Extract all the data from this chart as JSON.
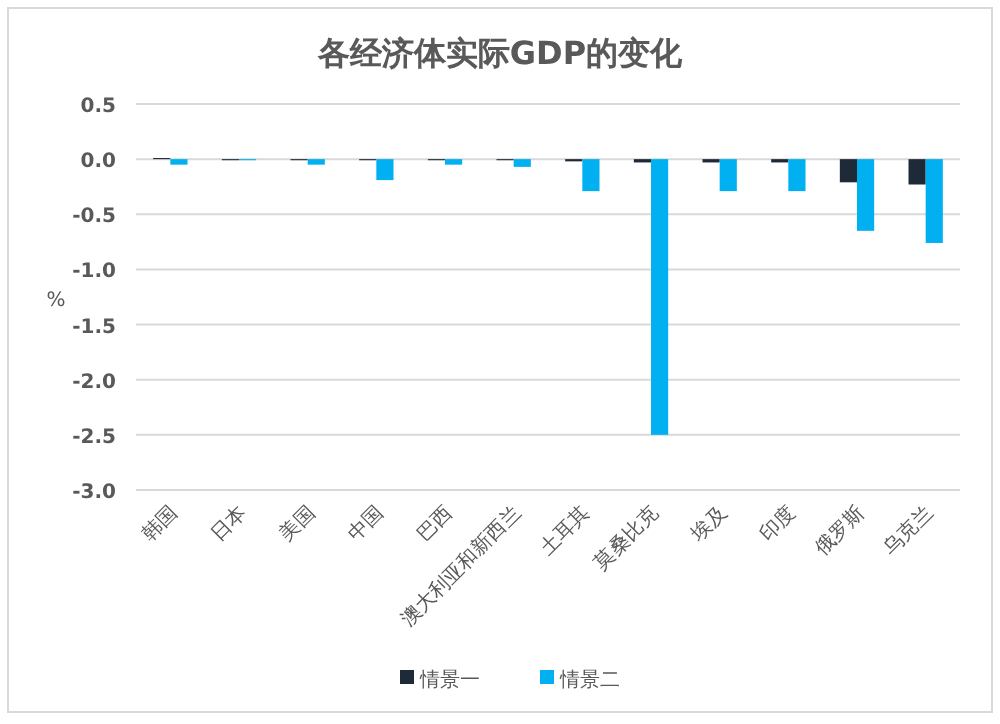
{
  "chart_data": {
    "type": "bar",
    "title": "各经济体实际GDP的变化",
    "ylabel": "%",
    "categories": [
      "韩国",
      "日本",
      "美国",
      "中国",
      "巴西",
      "澳大利亚和新西兰",
      "土耳其",
      "莫桑比克",
      "埃及",
      "印度",
      "俄罗斯",
      "乌克兰"
    ],
    "series": [
      {
        "name": "情景一",
        "color": "#1f2a38",
        "values": [
          0.01,
          -0.01,
          -0.01,
          -0.01,
          -0.01,
          -0.01,
          -0.02,
          -0.03,
          -0.03,
          -0.03,
          -0.21,
          -0.23
        ]
      },
      {
        "name": "情景二",
        "color": "#00b0f0",
        "values": [
          -0.05,
          -0.01,
          -0.05,
          -0.19,
          -0.05,
          -0.07,
          -0.29,
          -2.5,
          -0.29,
          -0.29,
          -0.65,
          -0.76
        ]
      }
    ],
    "ylim": [
      -3,
      0.5
    ],
    "yticks": [
      {
        "value": 0.5,
        "label": "0.5"
      },
      {
        "value": 0,
        "label": "0.0"
      },
      {
        "value": -0.5,
        "label": "-0.5"
      },
      {
        "value": -1,
        "label": "-1.0"
      },
      {
        "value": -1.5,
        "label": "-1.5"
      },
      {
        "value": -2,
        "label": "-2.0"
      },
      {
        "value": -2.5,
        "label": "-2.5"
      },
      {
        "value": -3,
        "label": "-3.0"
      }
    ],
    "grid": "y",
    "legend": "bottom"
  }
}
